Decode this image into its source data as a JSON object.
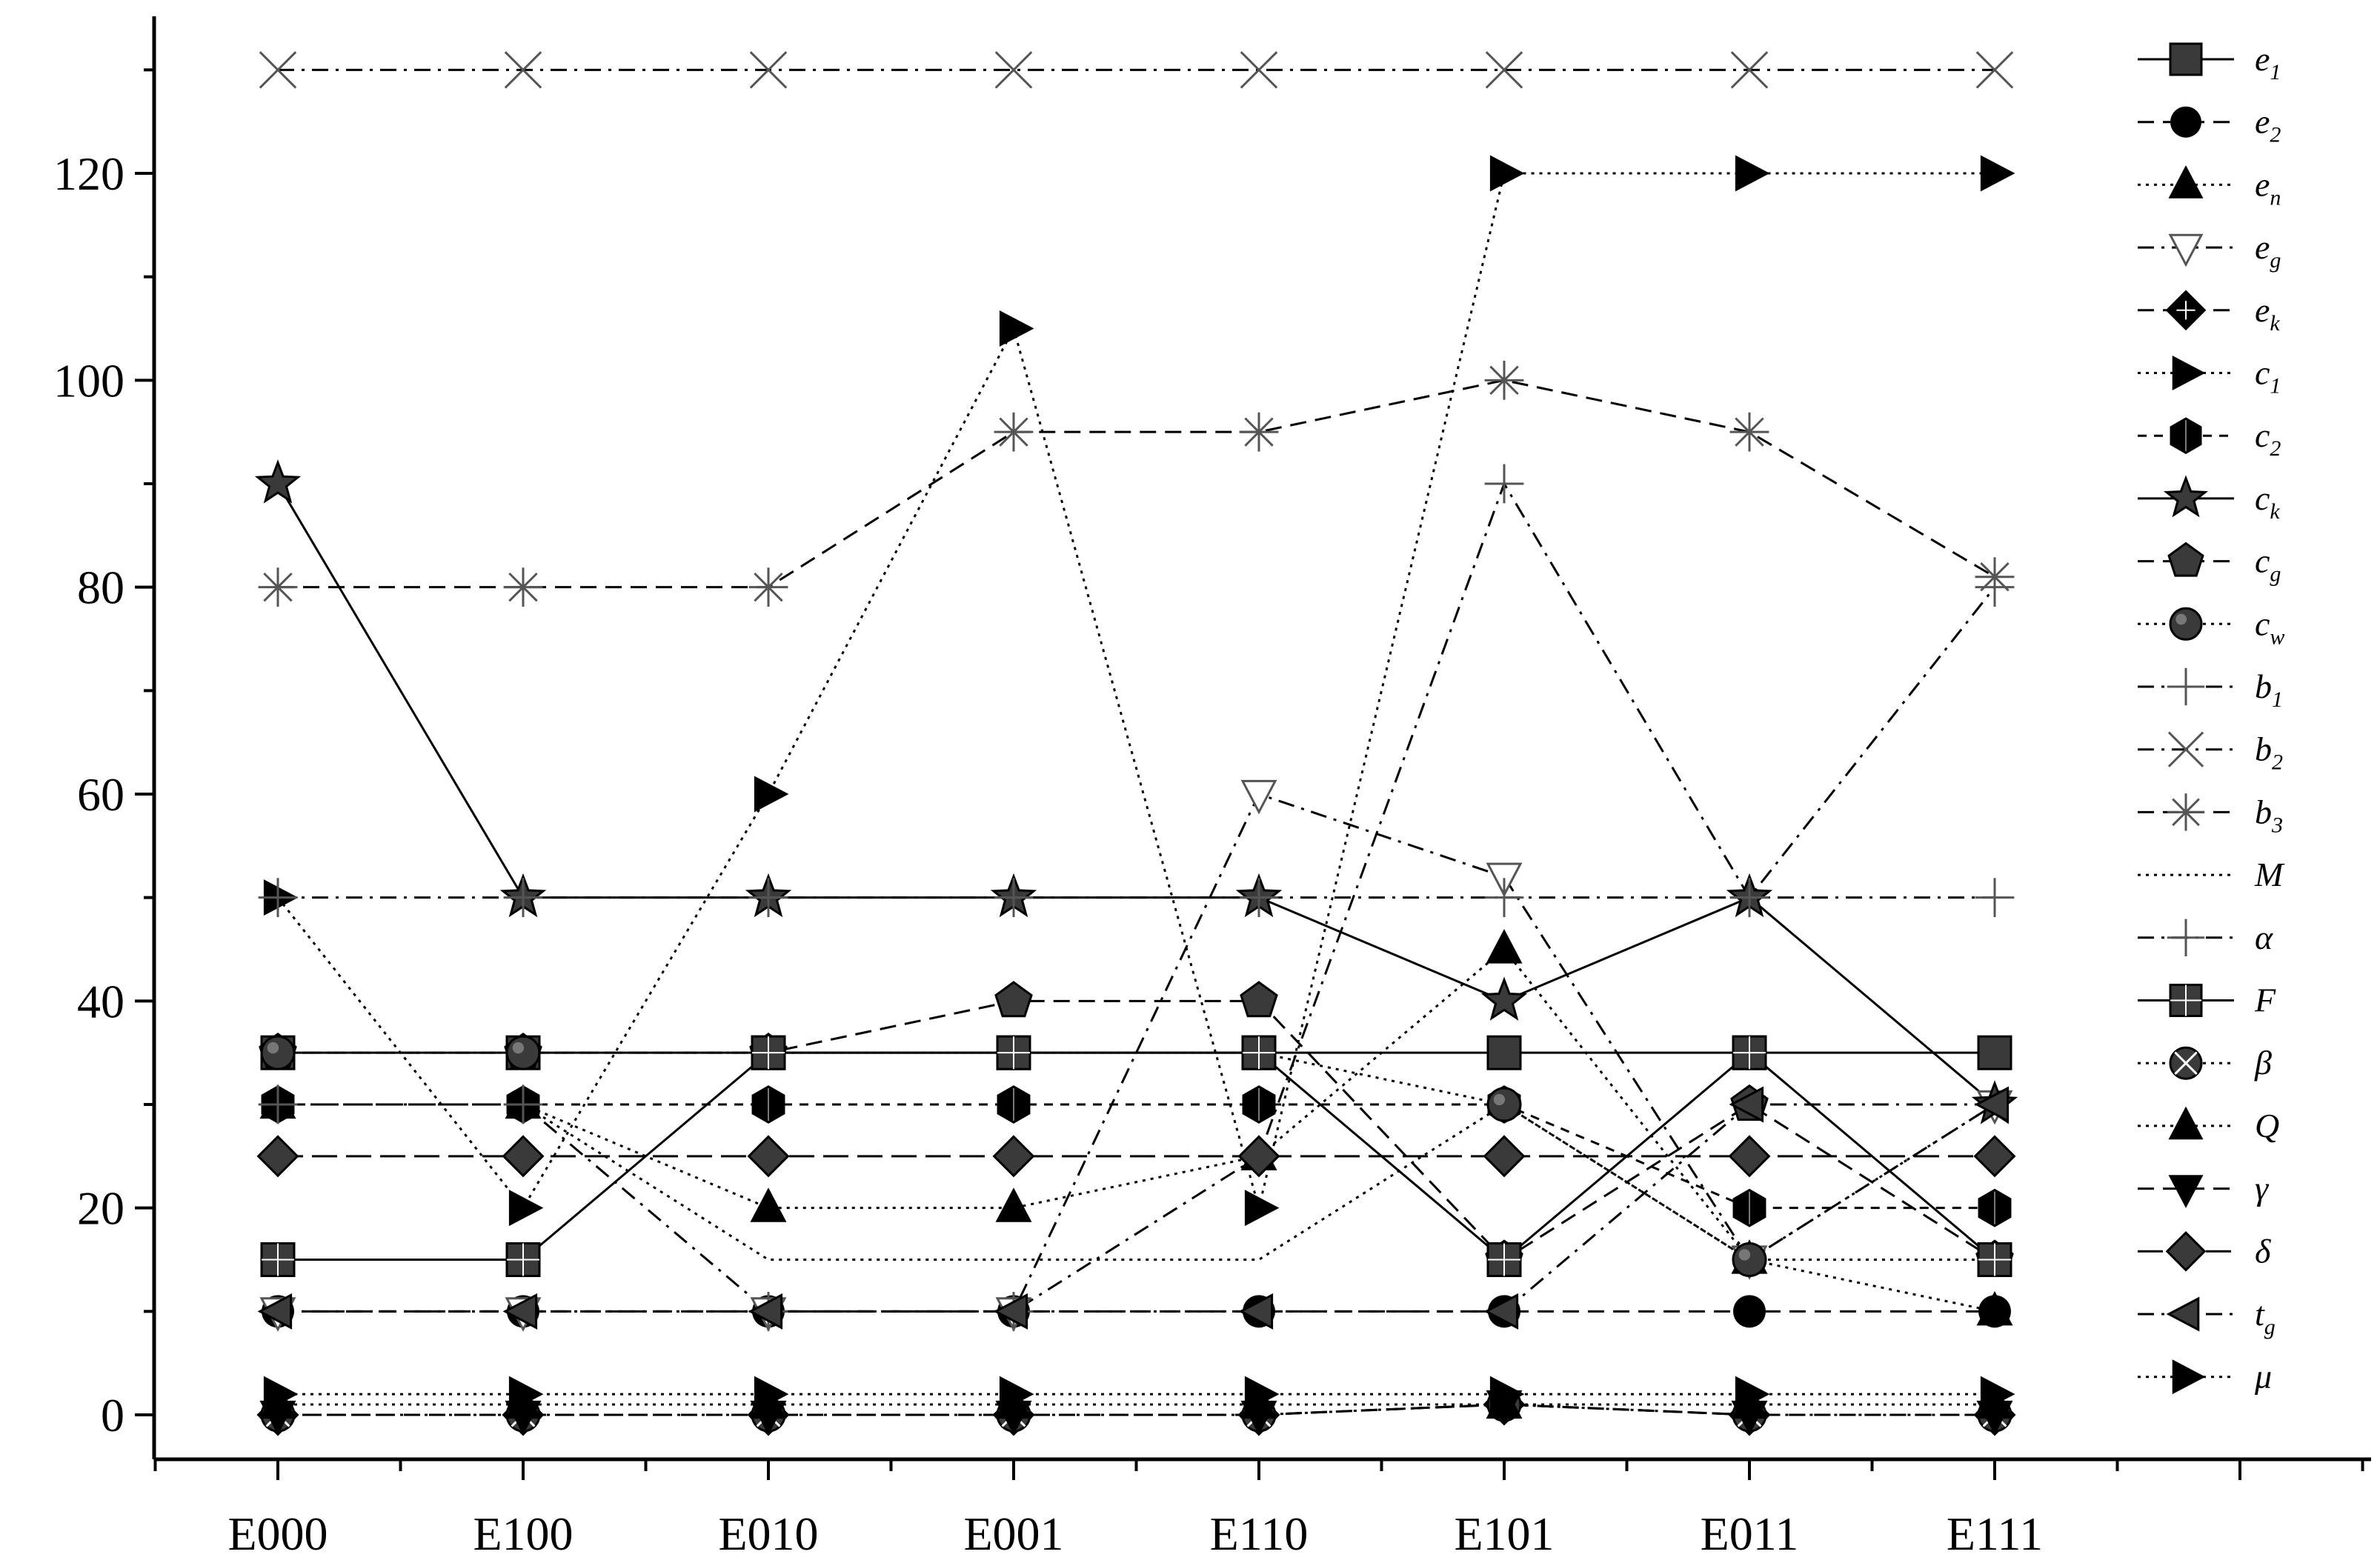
{
  "chart_data": {
    "type": "line",
    "title": "",
    "xlabel": "",
    "ylabel": "",
    "categories": [
      "E000",
      "E100",
      "E010",
      "E001",
      "E110",
      "E101",
      "E011",
      "E111"
    ],
    "ylim": [
      -4,
      134
    ],
    "yticks": [
      0,
      20,
      40,
      60,
      80,
      100,
      120
    ],
    "legend_position": "right",
    "series": [
      {
        "name": "e1",
        "label": "e",
        "sub": "1",
        "marker": "square",
        "dash": "solid",
        "values": [
          35,
          35,
          35,
          35,
          35,
          35,
          35,
          35
        ]
      },
      {
        "name": "e2",
        "label": "e",
        "sub": "2",
        "marker": "circle",
        "dash": "dash",
        "values": [
          10,
          10,
          10,
          10,
          10,
          10,
          10,
          10
        ]
      },
      {
        "name": "en",
        "label": "e",
        "sub": "n",
        "marker": "triangle",
        "dash": "dot",
        "values": [
          30,
          30,
          20,
          20,
          25,
          45,
          15,
          10
        ]
      },
      {
        "name": "eg",
        "label": "e",
        "sub": "g",
        "marker": "triangle-down-open",
        "dash": "dashdot",
        "values": [
          10,
          10,
          10,
          10,
          60,
          52,
          15,
          30
        ]
      },
      {
        "name": "ek",
        "label": "e",
        "sub": "k",
        "marker": "diamond-cross",
        "dash": "dash",
        "values": [
          0,
          0,
          0,
          0,
          0,
          1,
          0,
          0
        ]
      },
      {
        "name": "c1",
        "label": "c",
        "sub": "1",
        "marker": "triangle-right",
        "dash": "dot",
        "values": [
          50,
          20,
          60,
          105,
          20,
          120,
          120,
          120
        ]
      },
      {
        "name": "c2",
        "label": "c",
        "sub": "2",
        "marker": "hexagon",
        "dash": "shortdash",
        "values": [
          30,
          30,
          30,
          30,
          30,
          30,
          20,
          20
        ]
      },
      {
        "name": "ck",
        "label": "c",
        "sub": "k",
        "marker": "star",
        "dash": "solid",
        "values": [
          90,
          50,
          50,
          50,
          50,
          40,
          50,
          30
        ]
      },
      {
        "name": "cg",
        "label": "c",
        "sub": "g",
        "marker": "pentagon",
        "dash": "dash",
        "values": [
          35,
          35,
          35,
          40,
          40,
          15,
          30,
          15
        ]
      },
      {
        "name": "cw",
        "label": "c",
        "sub": "w",
        "marker": "circle-dark",
        "dash": "dot",
        "values": [
          35,
          35,
          35,
          35,
          35,
          30,
          15,
          15
        ]
      },
      {
        "name": "b1",
        "label": "b",
        "sub": "1",
        "marker": "plus",
        "dash": "dashdot",
        "values": [
          30,
          30,
          10,
          10,
          25,
          90,
          50,
          80
        ]
      },
      {
        "name": "b2",
        "label": "b",
        "sub": "2",
        "marker": "x",
        "dash": "dashdot",
        "values": [
          130,
          130,
          130,
          130,
          130,
          130,
          130,
          130
        ]
      },
      {
        "name": "b3",
        "label": "b",
        "sub": "3",
        "marker": "asterisk",
        "dash": "dash",
        "values": [
          80,
          80,
          80,
          95,
          95,
          100,
          95,
          81
        ]
      },
      {
        "name": "M",
        "label": "M",
        "sub": "",
        "marker": "none",
        "dash": "dot",
        "values": [
          30,
          30,
          15,
          15,
          15,
          30,
          15,
          30
        ]
      },
      {
        "name": "alpha",
        "label": "α",
        "sub": "",
        "marker": "plus-thin",
        "dash": "dashdot",
        "values": [
          50,
          50,
          50,
          50,
          50,
          50,
          50,
          50
        ]
      },
      {
        "name": "F",
        "label": "F",
        "sub": "",
        "marker": "square-cross",
        "dash": "solid",
        "values": [
          15,
          15,
          35,
          35,
          35,
          15,
          35,
          15
        ]
      },
      {
        "name": "beta",
        "label": "β",
        "sub": "",
        "marker": "circle-x",
        "dash": "dot",
        "values": [
          0,
          0,
          0,
          0,
          0,
          1,
          0,
          0
        ]
      },
      {
        "name": "Q",
        "label": "Q",
        "sub": "",
        "marker": "triangle-line",
        "dash": "dot",
        "values": [
          1,
          1,
          1,
          1,
          1,
          1,
          1,
          1
        ]
      },
      {
        "name": "gamma",
        "label": "γ",
        "sub": "",
        "marker": "triangle-down",
        "dash": "dash",
        "values": [
          0,
          0,
          0,
          0,
          0,
          1,
          0,
          0
        ]
      },
      {
        "name": "delta",
        "label": "δ",
        "sub": "",
        "marker": "diamond",
        "dash": "longdash",
        "values": [
          25,
          25,
          25,
          25,
          25,
          25,
          25,
          25
        ]
      },
      {
        "name": "tg",
        "label": "t",
        "sub": "g",
        "marker": "triangle-left",
        "dash": "dashdot",
        "values": [
          10,
          10,
          10,
          10,
          10,
          10,
          30,
          30
        ]
      },
      {
        "name": "mu",
        "label": "μ",
        "sub": "",
        "marker": "triangle-right",
        "dash": "dot",
        "values": [
          2,
          2,
          2,
          2,
          2,
          2,
          2,
          2
        ]
      }
    ]
  }
}
